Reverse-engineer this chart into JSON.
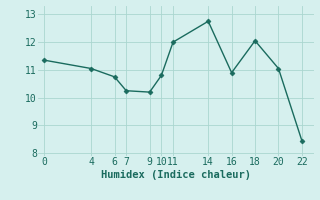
{
  "x": [
    0,
    4,
    6,
    7,
    9,
    10,
    11,
    14,
    16,
    18,
    20,
    22
  ],
  "y": [
    11.35,
    11.05,
    10.75,
    10.25,
    10.2,
    10.8,
    12.0,
    12.75,
    10.9,
    12.05,
    11.05,
    8.45
  ],
  "xticks": [
    0,
    4,
    6,
    7,
    9,
    10,
    11,
    14,
    16,
    18,
    20,
    22
  ],
  "yticks": [
    8,
    9,
    10,
    11,
    12,
    13
  ],
  "xlim": [
    -0.5,
    23.0
  ],
  "ylim": [
    7.9,
    13.3
  ],
  "xlabel": "Humidex (Indice chaleur)",
  "line_color": "#1a6b5e",
  "marker": "D",
  "marker_size": 2.5,
  "bg_color": "#d6f0ee",
  "grid_color": "#aad6d0",
  "xlabel_fontsize": 7.5,
  "tick_fontsize": 7,
  "line_width": 1.0
}
